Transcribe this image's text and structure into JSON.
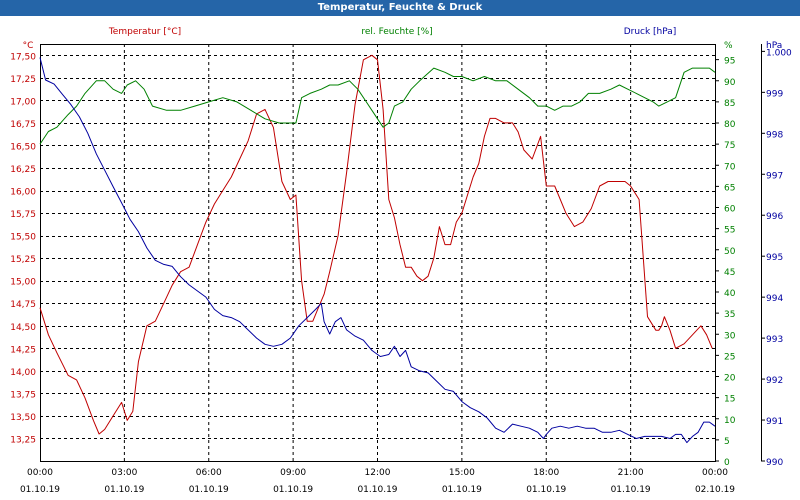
{
  "window": {
    "title": "Temperatur, Feuchte & Druck"
  },
  "chart_data": {
    "type": "line",
    "title": "Temperatur, Feuchte & Druck",
    "x": {
      "tick_times": [
        "00:00",
        "03:00",
        "06:00",
        "09:00",
        "12:00",
        "15:00",
        "18:00",
        "21:00",
        "00:00"
      ],
      "tick_dates": [
        "01.10.19",
        "01.10.19",
        "01.10.19",
        "01.10.19",
        "01.10.19",
        "01.10.19",
        "01.10.19",
        "01.10.19",
        "02.10.19"
      ],
      "range_hours": [
        0,
        24
      ]
    },
    "axes": {
      "left": {
        "unit": "°C",
        "label": "Temperatur [°C]",
        "color": "#c00000",
        "range": [
          13.0,
          17.625
        ],
        "ticks": [
          13.25,
          13.5,
          13.75,
          14.0,
          14.25,
          14.5,
          14.75,
          15.0,
          15.25,
          15.5,
          15.75,
          16.0,
          16.25,
          16.5,
          16.75,
          17.0,
          17.25,
          17.5
        ],
        "tick_labels": [
          "13,25",
          "13,50",
          "13,75",
          "14,00",
          "14,25",
          "14,50",
          "14,75",
          "15,00",
          "15,25",
          "15,50",
          "15,75",
          "16,00",
          "16,25",
          "16,50",
          "16,75",
          "17,00",
          "17,25",
          "17,50"
        ]
      },
      "middle": {
        "unit": "%",
        "label": "rel. Feuchte [%]",
        "color": "#008000",
        "range": [
          0,
          98.7
        ],
        "ticks": [
          0,
          5,
          10,
          15,
          20,
          25,
          30,
          35,
          40,
          45,
          50,
          55,
          60,
          65,
          70,
          75,
          80,
          85,
          90,
          95
        ],
        "tick_labels": [
          "0",
          "5",
          "10",
          "15",
          "20",
          "25",
          "30",
          "35",
          "40",
          "45",
          "50",
          "55",
          "60",
          "65",
          "70",
          "75",
          "80",
          "85",
          "90",
          "95"
        ]
      },
      "right": {
        "unit": "hPa",
        "label": "Druck [hPa]",
        "color": "#0000a0",
        "range": [
          990,
          1000.18
        ],
        "ticks": [
          990,
          991,
          992,
          993,
          994,
          995,
          996,
          997,
          998,
          999,
          1000
        ],
        "tick_labels": [
          "990",
          "991",
          "992",
          "993",
          "994",
          "995",
          "996",
          "997",
          "998",
          "999",
          "1.000"
        ]
      }
    },
    "grid": true,
    "series": [
      {
        "name": "Temperatur [°C]",
        "axis": "left",
        "color": "#c00000",
        "x": [
          0,
          0.3,
          0.6,
          1.0,
          1.3,
          1.6,
          1.9,
          2.1,
          2.3,
          2.6,
          2.9,
          3.1,
          3.3,
          3.5,
          3.8,
          4.1,
          4.4,
          4.7,
          5.0,
          5.3,
          5.6,
          5.9,
          6.2,
          6.5,
          6.8,
          7.1,
          7.4,
          7.7,
          8.0,
          8.3,
          8.6,
          8.9,
          9.1,
          9.3,
          9.5,
          9.7,
          9.9,
          10.1,
          10.3,
          10.6,
          10.9,
          11.2,
          11.5,
          11.8,
          12.0,
          12.2,
          12.4,
          12.6,
          12.8,
          13.0,
          13.2,
          13.4,
          13.6,
          13.8,
          14.0,
          14.2,
          14.4,
          14.6,
          14.8,
          15.0,
          15.2,
          15.4,
          15.6,
          15.8,
          16.0,
          16.2,
          16.5,
          16.8,
          17.0,
          17.2,
          17.5,
          17.8,
          18.0,
          18.3,
          18.5,
          18.7,
          19.0,
          19.3,
          19.6,
          19.9,
          20.2,
          20.5,
          20.8,
          21.0,
          21.3,
          21.6,
          21.9,
          22.0,
          22.1,
          22.2,
          22.4,
          22.6,
          22.9,
          23.2,
          23.5,
          23.7,
          23.9
        ],
        "values": [
          14.7,
          14.4,
          14.2,
          13.95,
          13.9,
          13.7,
          13.45,
          13.3,
          13.35,
          13.5,
          13.65,
          13.45,
          13.55,
          14.1,
          14.5,
          14.55,
          14.75,
          14.95,
          15.1,
          15.15,
          15.4,
          15.65,
          15.85,
          16.0,
          16.15,
          16.35,
          16.55,
          16.85,
          16.9,
          16.7,
          16.1,
          15.9,
          15.95,
          15.0,
          14.55,
          14.55,
          14.7,
          14.85,
          15.1,
          15.5,
          16.2,
          16.95,
          17.45,
          17.5,
          17.45,
          16.9,
          15.9,
          15.7,
          15.4,
          15.15,
          15.15,
          15.05,
          15.0,
          15.05,
          15.25,
          15.6,
          15.4,
          15.4,
          15.65,
          15.75,
          15.95,
          16.15,
          16.3,
          16.6,
          16.8,
          16.8,
          16.75,
          16.75,
          16.65,
          16.45,
          16.35,
          16.6,
          16.05,
          16.05,
          15.9,
          15.75,
          15.6,
          15.65,
          15.8,
          16.05,
          16.1,
          16.1,
          16.1,
          16.05,
          15.9,
          14.6,
          14.45,
          14.45,
          14.5,
          14.6,
          14.45,
          14.25,
          14.3,
          14.4,
          14.5,
          14.4,
          14.25
        ]
      },
      {
        "name": "rel. Feuchte [%]",
        "axis": "middle",
        "color": "#008000",
        "x": [
          0,
          0.3,
          0.6,
          1.0,
          1.3,
          1.6,
          2.0,
          2.3,
          2.6,
          2.9,
          3.1,
          3.4,
          3.7,
          4.0,
          4.5,
          5.0,
          5.5,
          6.0,
          6.5,
          7.0,
          7.5,
          8.0,
          8.5,
          8.8,
          9.1,
          9.3,
          9.6,
          10.0,
          10.3,
          10.6,
          11.0,
          11.3,
          11.6,
          11.8,
          12.0,
          12.2,
          12.4,
          12.6,
          12.9,
          13.2,
          13.5,
          14.0,
          14.4,
          14.7,
          15.0,
          15.4,
          15.8,
          16.2,
          16.6,
          17.0,
          17.4,
          17.7,
          18.0,
          18.3,
          18.6,
          18.9,
          19.2,
          19.5,
          19.9,
          20.3,
          20.6,
          20.9,
          21.2,
          21.5,
          21.8,
          22.0,
          22.3,
          22.6,
          22.9,
          23.2,
          23.5,
          23.8,
          24.0
        ],
        "values": [
          75,
          78,
          79,
          82,
          84,
          87,
          90,
          90,
          88,
          87,
          89,
          90,
          88,
          84,
          83,
          83,
          84,
          85,
          86,
          85,
          83,
          81,
          80,
          80,
          80,
          86,
          87,
          88,
          89,
          89,
          90,
          88,
          85,
          83,
          81,
          79,
          80,
          84,
          85,
          88,
          90,
          93,
          92,
          91,
          91,
          90,
          91,
          90,
          90,
          88,
          86,
          84,
          84,
          83,
          84,
          84,
          85,
          87,
          87,
          88,
          89,
          88,
          87,
          86,
          85,
          84,
          85,
          86,
          92,
          93,
          93,
          93,
          92
        ]
      },
      {
        "name": "Druck [hPa]",
        "axis": "right",
        "color": "#0000a0",
        "x": [
          0,
          0.2,
          0.5,
          0.8,
          1.1,
          1.4,
          1.7,
          2.0,
          2.3,
          2.6,
          2.9,
          3.2,
          3.5,
          3.8,
          4.1,
          4.4,
          4.7,
          5.0,
          5.3,
          5.6,
          5.9,
          6.2,
          6.5,
          6.8,
          7.1,
          7.4,
          7.7,
          8.0,
          8.3,
          8.6,
          8.9,
          9.2,
          9.5,
          9.8,
          10.0,
          10.1,
          10.3,
          10.5,
          10.7,
          10.9,
          11.2,
          11.5,
          11.8,
          12.1,
          12.4,
          12.6,
          12.8,
          13.0,
          13.2,
          13.5,
          13.8,
          14.1,
          14.4,
          14.7,
          15.0,
          15.3,
          15.6,
          15.9,
          16.2,
          16.5,
          16.8,
          17.1,
          17.4,
          17.7,
          17.9,
          18.0,
          18.2,
          18.5,
          18.8,
          19.1,
          19.4,
          19.7,
          20.0,
          20.3,
          20.6,
          20.9,
          21.2,
          21.5,
          21.8,
          22.1,
          22.4,
          22.6,
          22.8,
          23.0,
          23.2,
          23.4,
          23.6,
          23.8,
          24.0
        ],
        "values": [
          999.85,
          999.3,
          999.2,
          998.95,
          998.7,
          998.4,
          998.0,
          997.5,
          997.1,
          996.7,
          996.3,
          995.9,
          995.6,
          995.2,
          994.9,
          994.8,
          994.75,
          994.5,
          994.3,
          994.15,
          994.0,
          993.7,
          993.55,
          993.5,
          993.4,
          993.2,
          993.0,
          992.85,
          992.8,
          992.85,
          993.0,
          993.3,
          993.5,
          993.7,
          993.85,
          993.4,
          993.1,
          993.4,
          993.5,
          993.2,
          993.05,
          992.95,
          992.7,
          992.55,
          992.6,
          992.8,
          992.55,
          992.7,
          992.3,
          992.2,
          992.15,
          991.95,
          991.75,
          991.7,
          991.45,
          991.3,
          991.2,
          991.05,
          990.8,
          990.7,
          990.9,
          990.85,
          990.8,
          990.7,
          990.55,
          990.65,
          990.8,
          990.85,
          990.8,
          990.85,
          990.8,
          990.8,
          990.7,
          990.7,
          990.75,
          990.65,
          990.55,
          990.6,
          990.6,
          990.6,
          990.55,
          990.65,
          990.65,
          990.45,
          990.6,
          990.7,
          990.95,
          990.95,
          990.85
        ]
      }
    ]
  }
}
